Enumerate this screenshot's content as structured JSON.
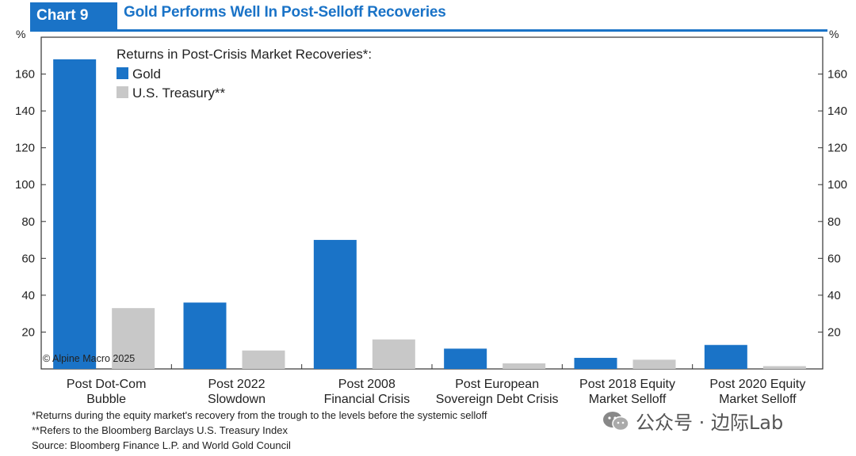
{
  "header": {
    "badge": "Chart 9",
    "title": "Gold Performs Well In Post-Selloff Recoveries",
    "accent_color": "#1a73c7"
  },
  "chart_data": {
    "type": "bar",
    "categories": [
      [
        "Post Dot-Com",
        "Bubble"
      ],
      [
        "Post 2022",
        "Slowdown"
      ],
      [
        "Post 2008",
        "Financial Crisis"
      ],
      [
        "Post European",
        "Sovereign Debt Crisis"
      ],
      [
        "Post 2018 Equity",
        "Market Selloff"
      ],
      [
        "Post 2020 Equity",
        "Market Selloff"
      ]
    ],
    "series": [
      {
        "name": "Gold",
        "color": "#1a73c7",
        "values": [
          168,
          36,
          70,
          11,
          6,
          13
        ]
      },
      {
        "name": "U.S. Treasury**",
        "color": "#c8c8c8",
        "values": [
          33,
          10,
          16,
          3,
          5,
          1.5
        ]
      }
    ],
    "legend_title": "Returns in Post-Crisis Market Recoveries*:",
    "ylabel_left": "%",
    "ylabel_right": "%",
    "ylim": [
      0,
      180
    ],
    "yticks": [
      20,
      40,
      60,
      80,
      100,
      120,
      140,
      160
    ],
    "copyright": "© Alpine Macro 2025",
    "legend_position": "top-left"
  },
  "footnotes": [
    "*Returns during the equity market's recovery from the trough to the levels before the systemic selloff",
    "**Refers to the Bloomberg Barclays U.S. Treasury Index",
    "Source: Bloomberg Finance L.P. and World Gold Council"
  ],
  "watermark": {
    "text": "公众号 · 边际Lab",
    "icon": "wechat-icon"
  }
}
